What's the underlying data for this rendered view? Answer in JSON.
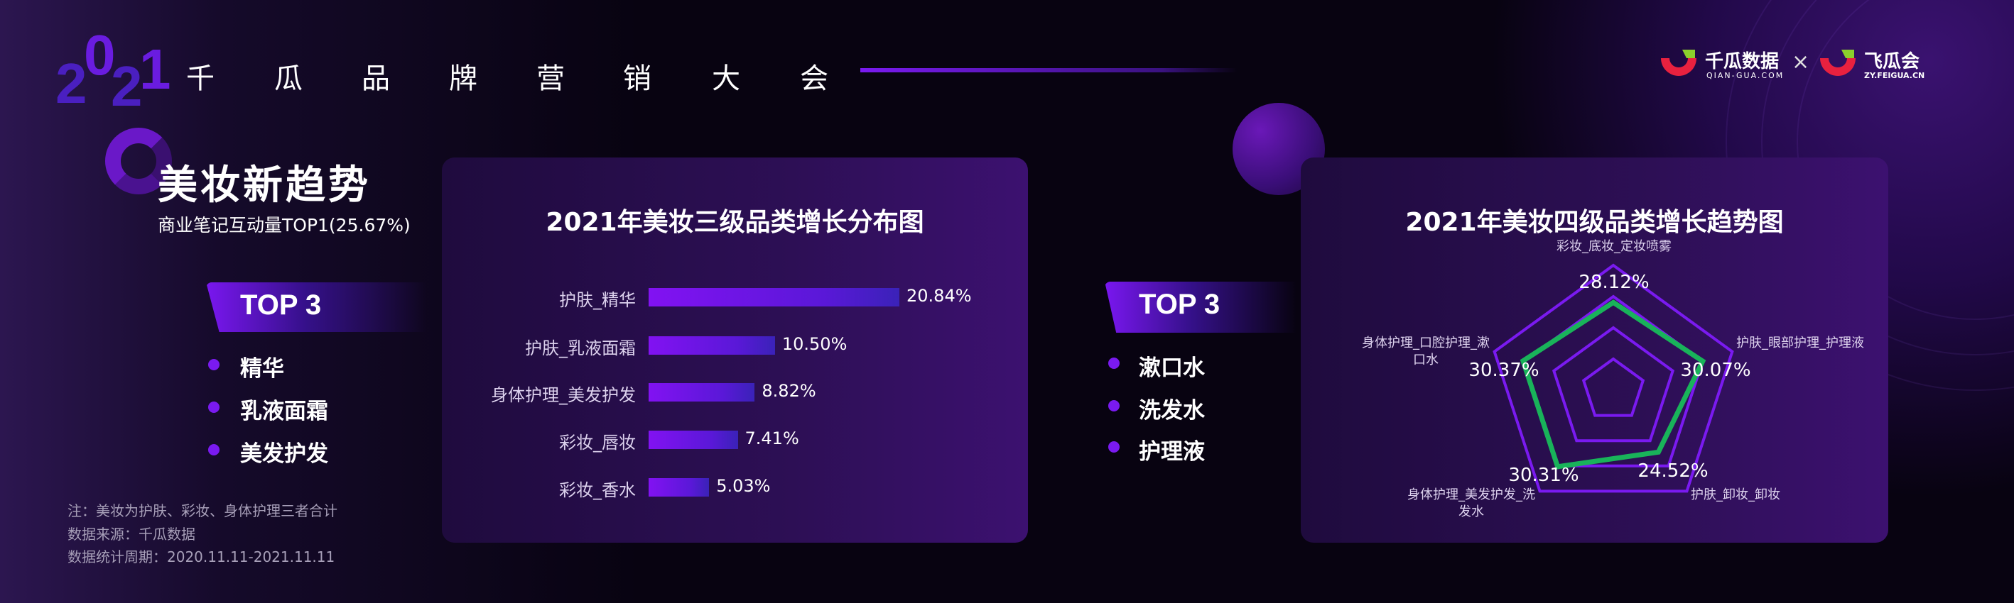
{
  "header": {
    "year_digits": [
      "2",
      "0",
      "2",
      "1"
    ],
    "title_chars": [
      "千",
      "瓜",
      "品",
      "牌",
      "营",
      "销",
      "大",
      "会"
    ],
    "logo_qiangua": {
      "name": "千瓜数据",
      "url_text": "QIAN-GUA.COM"
    },
    "logo_separator": "×",
    "logo_feigua": {
      "name": "飞瓜会",
      "url_text": "ZY.FEIGUA.CN"
    },
    "colors": {
      "logo_red": "#e8213f",
      "logo_green": "#8ccf2c",
      "accent": "#7a1af0"
    }
  },
  "left": {
    "heading": "美妆新趋势",
    "subheading": "商业笔记互动量TOP1(25.67%)",
    "top_label": "TOP 3",
    "top_items": [
      "精华",
      "乳液面霜",
      "美发护发"
    ],
    "notes": [
      "注：美妆为护肤、彩妆、身体护理三者合计",
      "数据来源：千瓜数据",
      "数据统计周期：2020.11.11-2021.11.11"
    ]
  },
  "middle": {
    "top_label": "TOP 3",
    "top_items": [
      "漱口水",
      "洗发水",
      "护理液"
    ]
  },
  "chart_data": [
    {
      "type": "bar",
      "orientation": "horizontal",
      "title": "2021年美妆三级品类增长分布图",
      "categories": [
        "护肤_精华",
        "护肤_乳液面霜",
        "身体护理_美发护发",
        "彩妆_唇妆",
        "彩妆_香水"
      ],
      "values": [
        20.84,
        10.5,
        8.82,
        7.41,
        5.03
      ],
      "value_labels": [
        "20.84%",
        "10.50%",
        "8.82%",
        "7.41%",
        "5.03%"
      ],
      "bar_color": "#8212f2",
      "grid": false
    },
    {
      "type": "radar",
      "title": "2021年美妆四级品类增长趋势图",
      "axes": [
        "彩妆_底妆_定妆喷雾",
        "护肤_眼部护理_护理液",
        "护肤_卸妆_卸妆",
        "身体护理_美发护发_洗发水",
        "身体护理_口腔护理_漱口水"
      ],
      "axis_label_lines": [
        [
          "彩妆_底妆_定妆喷雾"
        ],
        [
          "护肤_眼部护理_护理液"
        ],
        [
          "护肤_卸妆_卸妆"
        ],
        [
          "身体护理_美发护发_洗",
          "发水"
        ],
        [
          "身体护理_口腔护理_漱",
          "口水"
        ]
      ],
      "values": [
        28.12,
        30.07,
        24.52,
        30.31,
        30.37
      ],
      "value_labels": [
        "28.12%",
        "30.07%",
        "24.52%",
        "30.31%",
        "30.37%"
      ],
      "rmax": 40,
      "rings": 4,
      "line_color": "#19b35a",
      "grid_color": "#7a1af0"
    }
  ]
}
